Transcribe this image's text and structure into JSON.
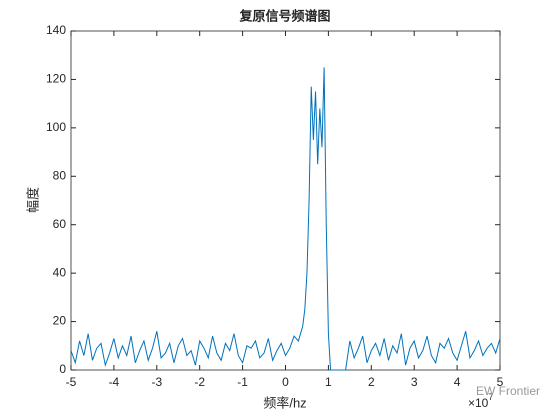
{
  "chart_data": {
    "type": "line",
    "title": "复原信号频谱图",
    "xlabel": "频率/hz",
    "ylabel": "幅度",
    "exponent_base": "×10",
    "exponent_power": "7",
    "watermark": "EW Frontier",
    "x": [
      -5,
      -4.9,
      -4.8,
      -4.7,
      -4.6,
      -4.5,
      -4.4,
      -4.3,
      -4.2,
      -4.1,
      -4,
      -3.9,
      -3.8,
      -3.7,
      -3.6,
      -3.5,
      -3.4,
      -3.3,
      -3.2,
      -3.1,
      -3,
      -2.9,
      -2.8,
      -2.7,
      -2.6,
      -2.5,
      -2.4,
      -2.3,
      -2.2,
      -2.1,
      -2,
      -1.9,
      -1.8,
      -1.7,
      -1.6,
      -1.5,
      -1.4,
      -1.3,
      -1.2,
      -1.1,
      -1,
      -0.9,
      -0.8,
      -0.7,
      -0.6,
      -0.5,
      -0.4,
      -0.3,
      -0.2,
      -0.1,
      0,
      0.1,
      0.2,
      0.3,
      0.4,
      0.45,
      0.5,
      0.55,
      0.6,
      0.65,
      0.7,
      0.75,
      0.8,
      0.85,
      0.9,
      0.95,
      1,
      1.05,
      1.1,
      1.2,
      1.3,
      1.4,
      1.5,
      1.6,
      1.7,
      1.8,
      1.9,
      2,
      2.1,
      2.2,
      2.3,
      2.4,
      2.5,
      2.6,
      2.7,
      2.8,
      2.9,
      3,
      3.1,
      3.2,
      3.3,
      3.4,
      3.5,
      3.6,
      3.7,
      3.8,
      3.9,
      4,
      4.1,
      4.2,
      4.3,
      4.4,
      4.5,
      4.6,
      4.7,
      4.8,
      4.9,
      5
    ],
    "series": [
      {
        "color": "#0072bd",
        "values": [
          8,
          3,
          12,
          6,
          15,
          4,
          9,
          11,
          2,
          7,
          13,
          5,
          10,
          6,
          14,
          3,
          8,
          12,
          4,
          9,
          16,
          5,
          7,
          11,
          3,
          10,
          13,
          6,
          8,
          2,
          12,
          9,
          5,
          14,
          7,
          4,
          11,
          8,
          15,
          6,
          3,
          10,
          9,
          12,
          5,
          7,
          13,
          4,
          8,
          11,
          6,
          9,
          14,
          12,
          18,
          25,
          40,
          70,
          117,
          95,
          115,
          85,
          108,
          92,
          125,
          60,
          15,
          0,
          0,
          0,
          0,
          0,
          12,
          5,
          9,
          14,
          3,
          8,
          11,
          6,
          13,
          4,
          10,
          7,
          15,
          2,
          9,
          12,
          5,
          8,
          14,
          6,
          3,
          11,
          9,
          13,
          7,
          4,
          10,
          16,
          5,
          8,
          12,
          6,
          9,
          11,
          7,
          13
        ]
      }
    ],
    "xlim": [
      -5,
      5
    ],
    "ylim": [
      0,
      140
    ],
    "xticks": [
      -5,
      -4,
      -3,
      -2,
      -1,
      0,
      1,
      2,
      3,
      4,
      5
    ],
    "yticks": [
      0,
      20,
      40,
      60,
      80,
      100,
      120,
      140
    ]
  }
}
